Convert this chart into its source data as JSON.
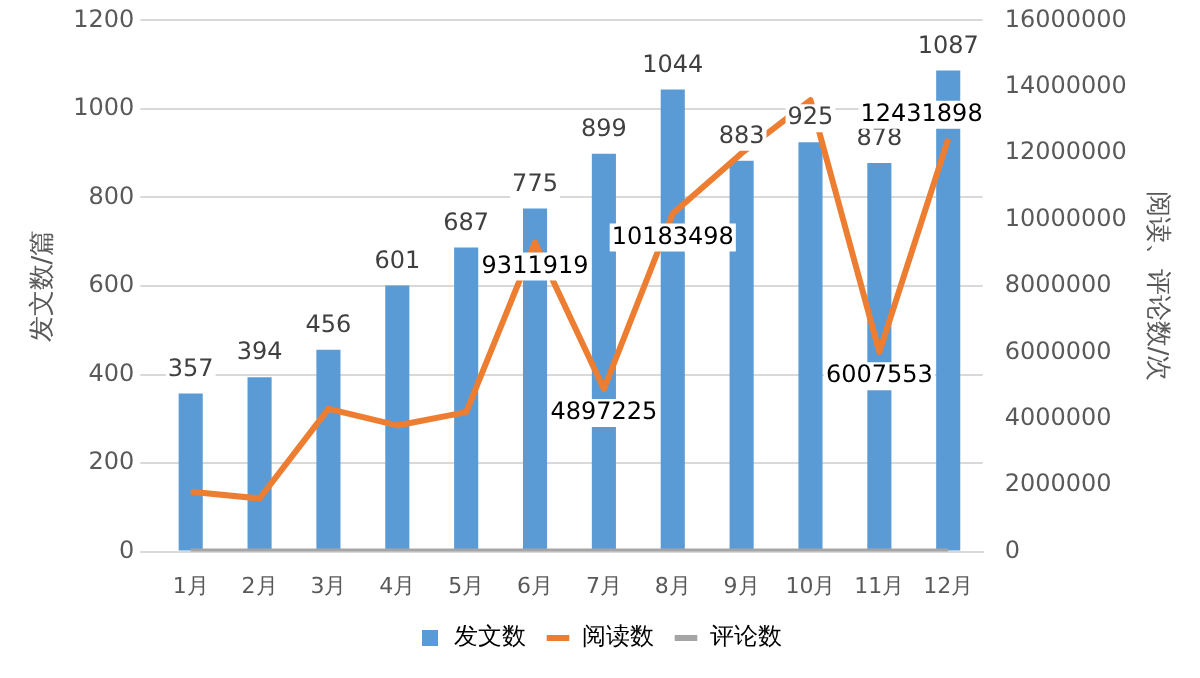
{
  "chart_data": {
    "type": "bar",
    "categories": [
      "1月",
      "2月",
      "3月",
      "4月",
      "5月",
      "6月",
      "7月",
      "8月",
      "9月",
      "10月",
      "11月",
      "12月"
    ],
    "ylabel": "发文数/篇",
    "y2label": "阅读、评论数/次",
    "series": [
      {
        "name": "发文数",
        "type": "bar",
        "color": "#5b9bd5",
        "values": [
          357,
          394,
          456,
          601,
          687,
          775,
          899,
          1044,
          883,
          925,
          878,
          1087
        ],
        "value_labels": [
          "357",
          "394",
          "456",
          "601",
          "687",
          "775",
          "899",
          "1044",
          "883",
          "925",
          "878",
          "1087"
        ]
      },
      {
        "name": "阅读数",
        "type": "line",
        "axis": "y2",
        "color": "#ed7d31",
        "values": [
          1800000,
          1600000,
          4300000,
          3800000,
          4200000,
          9311919,
          4897225,
          10183498,
          12000000,
          13600000,
          6007553,
          12431898
        ],
        "value_labels": [
          null,
          null,
          null,
          null,
          null,
          "9311919",
          "4897225",
          "10183498",
          null,
          null,
          "6007553",
          "12431898"
        ]
      },
      {
        "name": "评论数",
        "type": "line",
        "axis": "y2",
        "color": "#a5a5a5",
        "values": [
          0,
          0,
          0,
          0,
          0,
          0,
          0,
          0,
          0,
          0,
          0,
          0
        ]
      }
    ],
    "ylim": [
      0,
      1200
    ],
    "yticks": [
      0,
      200,
      400,
      600,
      800,
      1000,
      1200
    ],
    "y2lim": [
      0,
      16000000
    ],
    "y2ticks": [
      0,
      2000000,
      4000000,
      6000000,
      8000000,
      10000000,
      12000000,
      14000000,
      16000000
    ],
    "grid": "y",
    "legend": "bottom"
  }
}
